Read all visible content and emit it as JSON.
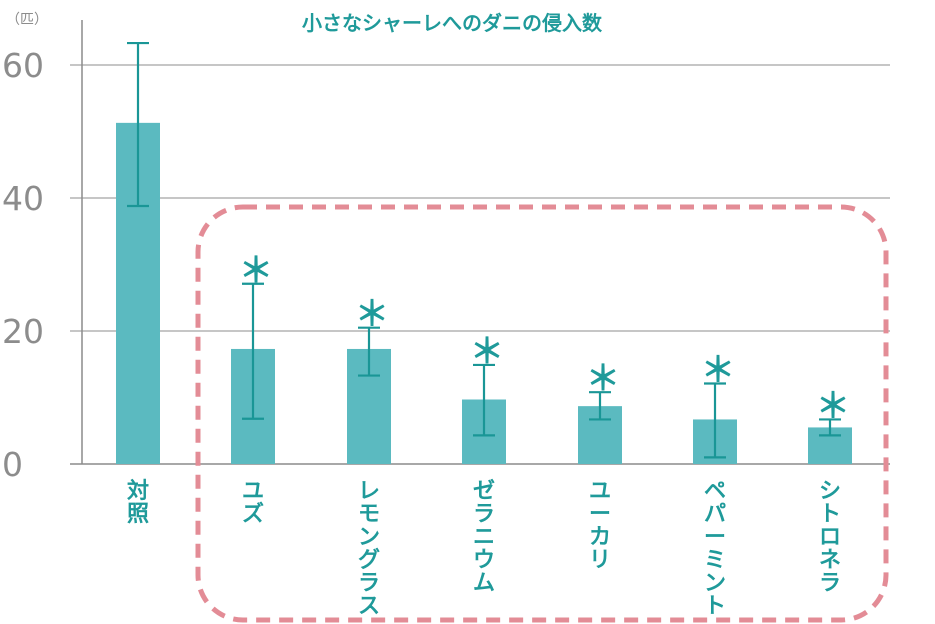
{
  "chart_data": {
    "type": "bar",
    "title": "小さなシャーレへのダニの侵入数",
    "ylabel": "（匹）",
    "xlabel": "",
    "ylim": [
      0,
      60
    ],
    "yticks": [
      0,
      20,
      40,
      60
    ],
    "grid": true,
    "categories": [
      "対照",
      "ユズ",
      "レモングラス",
      "ゼラニウム",
      "ユーカリ",
      "ペパーミント",
      "シトロネラ"
    ],
    "values": [
      51.3,
      17.3,
      17.3,
      9.7,
      8.7,
      6.7,
      5.5
    ],
    "error_low": [
      38.8,
      6.8,
      13.3,
      4.3,
      6.7,
      1.0,
      4.3
    ],
    "error_high": [
      63.3,
      27.1,
      20.5,
      14.9,
      10.8,
      12.1,
      6.7
    ],
    "significance_mark": "＊",
    "significant": [
      false,
      true,
      true,
      true,
      true,
      true,
      true
    ],
    "highlight_group": {
      "categories": [
        "ユズ",
        "レモングラス",
        "ゼラニウム",
        "ユーカリ",
        "ペパーミント",
        "シトロネラ"
      ],
      "style": "dashed-rounded-box"
    },
    "colors": {
      "bar": "#5bbac0",
      "error_bar": "#1a9696",
      "text": "#1f9a9a",
      "axis": "#8c8c8c",
      "grid": "#b4b4b4",
      "highlight_box": "#e38c96"
    }
  }
}
